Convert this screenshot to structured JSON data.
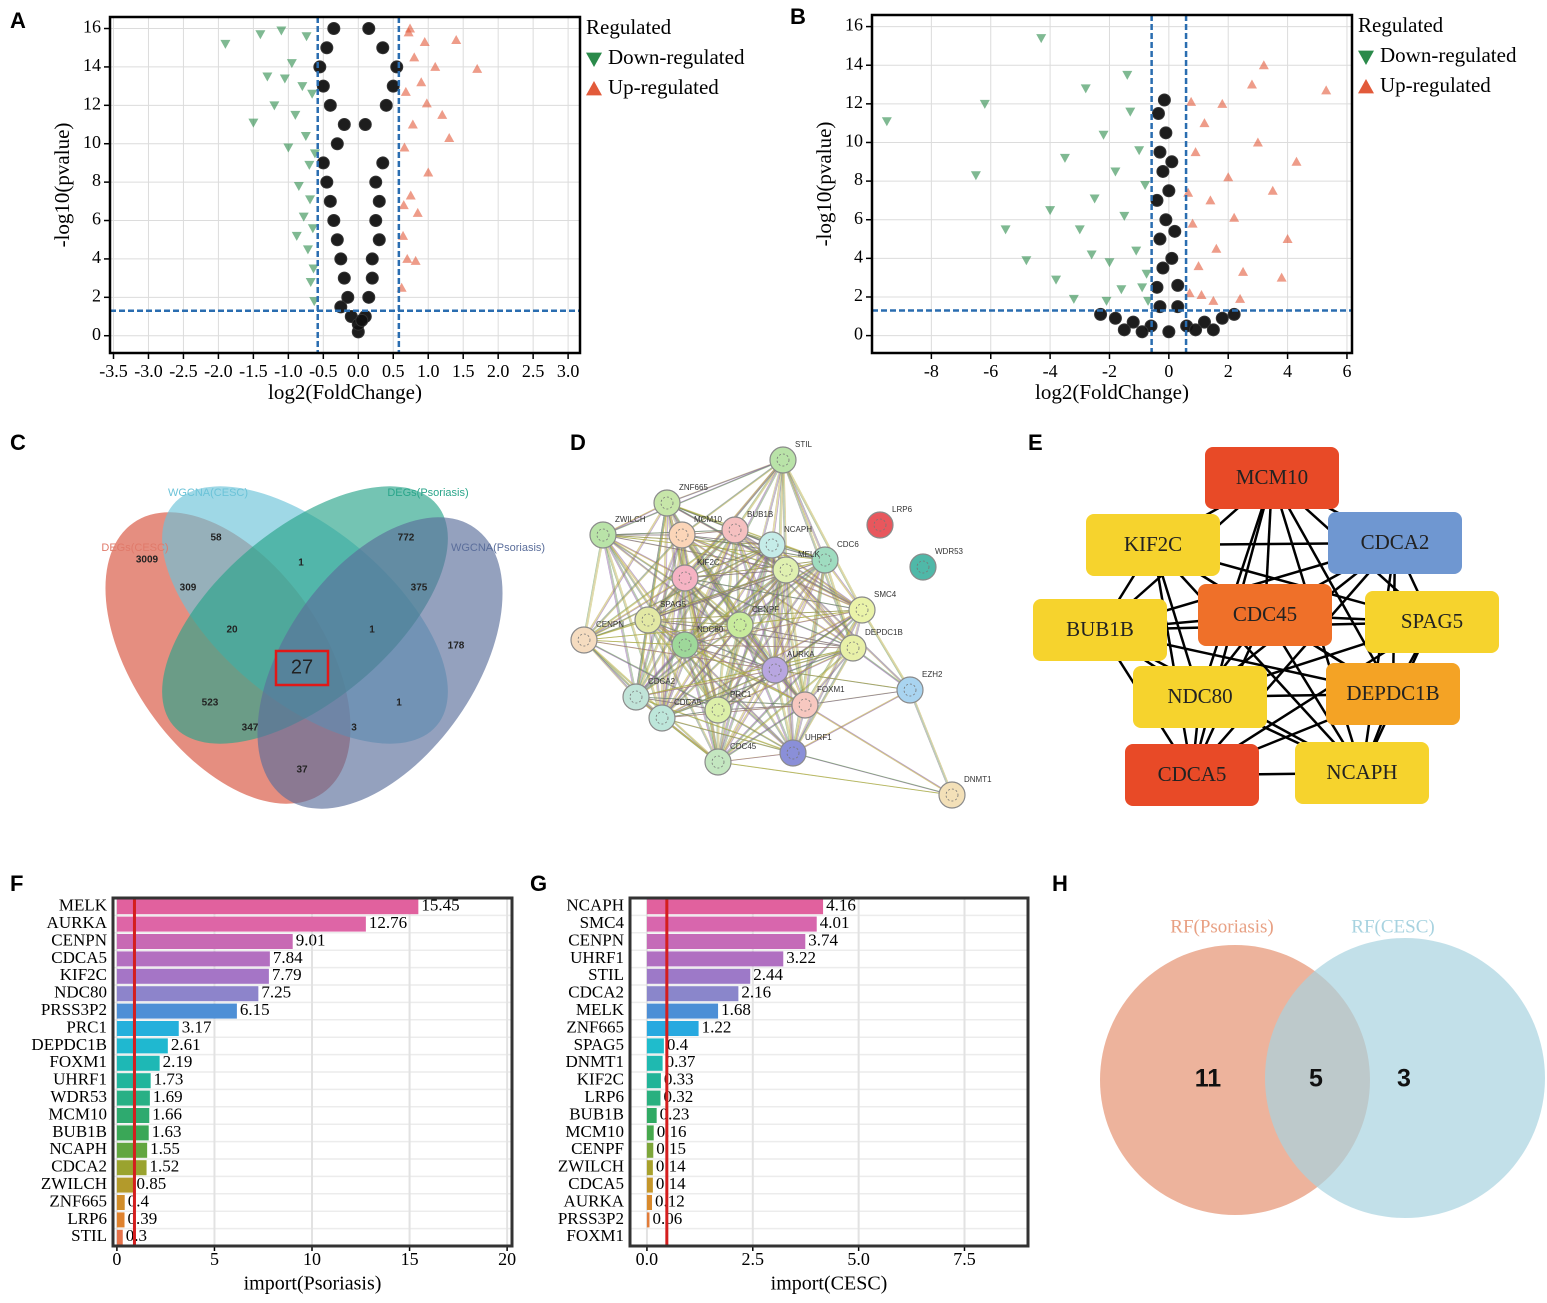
{
  "chart_data": [
    {
      "type": "scatter",
      "label": "A",
      "xlabel": "log2(FoldChange)",
      "ylabel": "-log10(pvalue)",
      "xlim": [
        -3.55,
        3.17
      ],
      "ylim": [
        -0.9,
        16.6
      ],
      "xticks": [
        -3.5,
        {
          "value": -3,
          "label": "-3.0"
        },
        -2.5,
        {
          "value": -2,
          "label": "-2.0"
        },
        -1.5,
        {
          "value": -1,
          "label": "-1.0"
        },
        -0.5,
        {
          "value": 0,
          "label": "0.0"
        },
        0.5,
        {
          "value": 1,
          "label": "1.0"
        },
        1.5,
        {
          "value": 2,
          "label": "2.0"
        },
        2.5,
        {
          "value": 3,
          "label": "3.0"
        }
      ],
      "yticks": [
        0,
        2,
        4,
        6,
        8,
        10,
        12,
        14,
        16
      ],
      "grid": true,
      "vlines": [
        -0.58,
        0.58
      ],
      "hline": 1.3,
      "legend_title": "Regulated",
      "series": [
        {
          "name": "Down-regulated",
          "color": "#2a8a4a",
          "marker": "triangle-down",
          "x": [
            -1.9,
            -1.5,
            -1.3,
            -1.2,
            -1.1,
            -1.0,
            -0.95,
            -0.9,
            -0.85,
            -0.8,
            -0.78,
            -0.75,
            -0.72,
            -0.7,
            -0.68,
            -0.66,
            -0.65,
            -0.64,
            -0.63,
            -0.62,
            -1.4,
            -1.05,
            -0.88,
            -0.74,
            -0.69
          ],
          "values": [
            15.2,
            11.1,
            13.5,
            12.0,
            15.9,
            9.8,
            14.2,
            11.5,
            7.8,
            13.0,
            6.2,
            10.4,
            4.5,
            8.9,
            2.8,
            12.6,
            5.6,
            3.5,
            1.8,
            9.5,
            15.7,
            13.4,
            5.2,
            15.6,
            7.1
          ]
        },
        {
          "name": "Up-regulated",
          "color": "#e25a3a",
          "marker": "triangle-up",
          "x": [
            0.62,
            0.64,
            0.66,
            0.68,
            0.7,
            0.72,
            0.75,
            0.78,
            0.8,
            0.85,
            0.9,
            0.95,
            1.0,
            1.1,
            1.2,
            1.3,
            1.4,
            1.7,
            0.65,
            0.82,
            0.74,
            0.98
          ],
          "values": [
            2.5,
            5.2,
            9.8,
            12.7,
            4.0,
            15.8,
            7.3,
            11.0,
            14.5,
            6.4,
            13.2,
            15.3,
            8.5,
            14.0,
            11.5,
            10.3,
            15.4,
            13.9,
            6.8,
            3.9,
            16.0,
            12.1
          ]
        },
        {
          "color": "#111111",
          "marker": "circle",
          "x": [
            0,
            -0.1,
            0.1,
            -0.15,
            0.15,
            -0.2,
            0.2,
            -0.25,
            0.2,
            -0.3,
            0.3,
            -0.35,
            0.25,
            -0.4,
            0.3,
            -0.45,
            0.25,
            -0.5,
            0.35,
            -0.3,
            0.0,
            -0.2,
            0.1,
            -0.4,
            0.4,
            -0.5,
            0.5,
            -0.55,
            0.55,
            -0.45,
            0.35,
            -0.35,
            0.15,
            -0.25,
            0.05
          ],
          "values": [
            0.2,
            1,
            1,
            2,
            2,
            3,
            3,
            4,
            4,
            5,
            5,
            6,
            6,
            7,
            7,
            8,
            8,
            9,
            9,
            10,
            0.6,
            11,
            11,
            12,
            12,
            13,
            13,
            14,
            14,
            15,
            15,
            16,
            16,
            1.5,
            0.8
          ]
        }
      ]
    },
    {
      "type": "scatter",
      "label": "B",
      "xlabel": "log2(FoldChange)",
      "ylabel": "-log10(pvalue)",
      "xlim": [
        -10,
        6.17
      ],
      "ylim": [
        -0.9,
        16.6
      ],
      "xticks": [
        -8,
        -6,
        -4,
        -2,
        0,
        2,
        4,
        6
      ],
      "yticks": [
        0,
        2,
        4,
        6,
        8,
        10,
        12,
        14,
        16
      ],
      "grid": true,
      "vlines": [
        -0.58,
        0.58
      ],
      "hline": 1.3,
      "legend_title": "Regulated",
      "series": [
        {
          "name": "Down-regulated",
          "color": "#2a8a4a",
          "marker": "triangle-down",
          "x": [
            -9.5,
            -6.5,
            -6.2,
            -4.3,
            -4.0,
            -3.5,
            -3.0,
            -2.8,
            -2.5,
            -2.2,
            -2.0,
            -1.8,
            -1.5,
            -1.3,
            -1.1,
            -0.9,
            -0.8,
            -0.7,
            -5.5,
            -4.8,
            -3.8,
            -2.6,
            -1.6,
            -1.0,
            -0.75,
            -2.1,
            -1.4,
            -3.2
          ],
          "values": [
            11.1,
            8.3,
            12.0,
            15.4,
            6.5,
            9.2,
            5.5,
            12.8,
            7.1,
            10.4,
            3.8,
            8.5,
            6.2,
            11.6,
            4.4,
            2.5,
            7.8,
            1.8,
            5.5,
            3.9,
            2.9,
            4.2,
            2.4,
            9.6,
            3.2,
            1.8,
            13.5,
            1.9
          ]
        },
        {
          "name": "Up-regulated",
          "color": "#e25a3a",
          "marker": "triangle-up",
          "x": [
            0.7,
            0.8,
            0.9,
            1.0,
            1.2,
            1.4,
            1.6,
            1.8,
            2.0,
            2.2,
            2.5,
            2.8,
            3.0,
            3.2,
            3.5,
            4.0,
            4.3,
            5.3,
            0.75,
            1.1,
            1.5,
            2.4,
            3.8,
            0.65
          ],
          "values": [
            2.2,
            5.8,
            9.5,
            3.6,
            11.0,
            7.0,
            4.5,
            12.0,
            8.2,
            6.1,
            3.3,
            13.0,
            10.0,
            14.0,
            7.5,
            5.0,
            9.0,
            12.7,
            12.1,
            2.1,
            1.8,
            1.9,
            3.0,
            7.4
          ]
        },
        {
          "color": "#111111",
          "marker": "circle",
          "x": [
            -2.3,
            -1.8,
            -1.2,
            -0.6,
            0,
            0.6,
            1.2,
            1.8,
            2.2,
            -1.5,
            -0.9,
            -0.3,
            0.3,
            0.9,
            1.5,
            -0.4,
            -0.2,
            0.1,
            0.3,
            -0.3,
            -0.1,
            0.2,
            -0.4,
            0.0,
            -0.2,
            -0.3,
            0.1,
            -0.1,
            -0.35,
            -0.15
          ],
          "values": [
            1.1,
            0.9,
            0.7,
            0.5,
            0.2,
            0.5,
            0.7,
            0.9,
            1.1,
            0.3,
            0.2,
            1.5,
            1.5,
            0.3,
            0.3,
            2.5,
            3.5,
            4,
            2.6,
            5,
            6,
            5.4,
            7,
            7.5,
            8.5,
            9.5,
            9.0,
            10.5,
            11.5,
            12.2
          ]
        }
      ]
    },
    {
      "type": "venn",
      "label": "C",
      "sets": [
        {
          "name": "DEGs(CESC)",
          "color": "#e07a6a"
        },
        {
          "name": "WGCNA(CESC)",
          "color": "#6cc3d8"
        },
        {
          "name": "DEGs(Psoriasis)",
          "color": "#2aa58a"
        },
        {
          "name": "WGCNA(Psoriasis)",
          "color": "#5b6e9b"
        }
      ],
      "regions": [
        3009,
        58,
        772,
        178,
        309,
        1,
        375,
        20,
        1,
        27,
        523,
        347,
        3,
        1,
        37
      ]
    },
    {
      "type": "network",
      "label": "D",
      "node_shape": "circle",
      "nodes": [
        {
          "name": "STIL",
          "color": "#b9e3a8"
        },
        {
          "name": "ZNF665",
          "color": "#c7e6a9"
        },
        {
          "name": "LRP6",
          "color": "#e8575d"
        },
        {
          "name": "ZWILCH",
          "color": "#b9e3a8"
        },
        {
          "name": "MCM10",
          "color": "#fbd5b8"
        },
        {
          "name": "BUB1B",
          "color": "#f5c0c0"
        },
        {
          "name": "NCAPH",
          "color": "#c5ece8"
        },
        {
          "name": "CDC6",
          "color": "#9fdcc0"
        },
        {
          "name": "WDR53",
          "color": "#4fb8a8"
        },
        {
          "name": "KIF2C",
          "color": "#f5b3c3"
        },
        {
          "name": "MELK",
          "color": "#dff0b0"
        },
        {
          "name": "SMC4",
          "color": "#eaf3a9"
        },
        {
          "name": "SPAG5",
          "color": "#e2e8a4"
        },
        {
          "name": "CENPF",
          "color": "#c8eb9c"
        },
        {
          "name": "CENPN",
          "color": "#f5dcc0"
        },
        {
          "name": "NDC80",
          "color": "#9ed89a"
        },
        {
          "name": "DEPDC1B",
          "color": "#e8f0a8"
        },
        {
          "name": "AURKA",
          "color": "#b8a6e0"
        },
        {
          "name": "CDCA2",
          "color": "#c0e4d8"
        },
        {
          "name": "PRC1",
          "color": "#dcefa8"
        },
        {
          "name": "FOXM1",
          "color": "#f7c8c0"
        },
        {
          "name": "EZH2",
          "color": "#a9d4f0"
        },
        {
          "name": "CDCA5",
          "color": "#bde6da"
        },
        {
          "name": "UHRF1",
          "color": "#8a8fd8"
        },
        {
          "name": "CDC45",
          "color": "#c3e6c0"
        },
        {
          "name": "DNMT1",
          "color": "#f3e0b8"
        }
      ]
    },
    {
      "type": "network",
      "label": "E",
      "node_shape": "box",
      "nodes": [
        {
          "name": "MCM10",
          "color": "#e84a27"
        },
        {
          "name": "KIF2C",
          "color": "#f6d32d"
        },
        {
          "name": "CDCA2",
          "color": "#6f97d1"
        },
        {
          "name": "BUB1B",
          "color": "#f6d32d"
        },
        {
          "name": "CDC45",
          "color": "#ef7029"
        },
        {
          "name": "SPAG5",
          "color": "#f6d32d"
        },
        {
          "name": "NDC80",
          "color": "#f6d32d"
        },
        {
          "name": "DEPDC1B",
          "color": "#f4a325"
        },
        {
          "name": "CDCA5",
          "color": "#e84a27"
        },
        {
          "name": "NCAPH",
          "color": "#f6d32d"
        }
      ]
    },
    {
      "type": "barh",
      "label": "F",
      "xlabel": "import(Psoriasis)",
      "categories": [
        "MELK",
        "AURKA",
        "CENPN",
        "CDCA5",
        "KIF2C",
        "NDC80",
        "PRSS3P2",
        "PRC1",
        "DEPDC1B",
        "FOXM1",
        "UHRF1",
        "WDR53",
        "MCM10",
        "BUB1B",
        "NCAPH",
        "CDCA2",
        "ZWILCH",
        "ZNF665",
        "LRP6",
        "STIL"
      ],
      "values": [
        15.45,
        12.76,
        9.01,
        7.84,
        7.79,
        7.25,
        6.15,
        3.17,
        2.61,
        2.19,
        1.73,
        1.69,
        1.66,
        1.63,
        1.55,
        1.52,
        0.85,
        0.4,
        0.39,
        0.3
      ],
      "colors": [
        "#e1619e",
        "#de65a6",
        "#c869b4",
        "#b36fc0",
        "#a575c6",
        "#8d84cb",
        "#4d8fd6",
        "#25b0dc",
        "#1fb8d0",
        "#1eb8b5",
        "#22b59c",
        "#28b085",
        "#2eaa6f",
        "#3aa757",
        "#62a640",
        "#9aa32f",
        "#b39a2b",
        "#d18d2a",
        "#df822e",
        "#e6724a"
      ],
      "xlim": [
        -0.2,
        20.25
      ],
      "xticks": [
        0,
        5,
        10,
        15,
        20
      ],
      "vline": 0.9,
      "grid": true
    },
    {
      "type": "barh",
      "label": "G",
      "xlabel": "import(CESC)",
      "categories": [
        "NCAPH",
        "SMC4",
        "CENPN",
        "UHRF1",
        "STIL",
        "CDCA2",
        "MELK",
        "ZNF665",
        "SPAG5",
        "DNMT1",
        "KIF2C",
        "LRP6",
        "BUB1B",
        "MCM10",
        "CENPF",
        "ZWILCH",
        "CDCA5",
        "AURKA",
        "PRSS3P2",
        "FOXM1"
      ],
      "values": [
        4.16,
        4.01,
        3.74,
        3.22,
        2.44,
        2.16,
        1.68,
        1.22,
        0.4,
        0.37,
        0.33,
        0.32,
        0.23,
        0.16,
        0.15,
        0.14,
        0.14,
        0.12,
        0.06,
        null
      ],
      "colors": [
        "#e1619e",
        "#d866ad",
        "#c56bb8",
        "#b06fc1",
        "#9d79c8",
        "#8a86cb",
        "#4c8fd6",
        "#27a9e0",
        "#1fbccc",
        "#1fb9b0",
        "#22b498",
        "#29b07f",
        "#30aa64",
        "#46a84d",
        "#7da63a",
        "#a8a12c",
        "#c4962a",
        "#d98a2c",
        "#e27c38",
        "#e6724a"
      ],
      "xlim": [
        -0.4,
        9.0
      ],
      "xticks": [
        {
          "value": 0,
          "label": "0.0"
        },
        2.5,
        {
          "value": 5,
          "label": "5.0"
        },
        7.5
      ],
      "vline": 0.47,
      "grid": true
    },
    {
      "type": "venn",
      "label": "H",
      "sets": [
        {
          "name": "RF(Psoriasis)",
          "color": "#e8a083"
        },
        {
          "name": "RF(CESC)",
          "color": "#a8d3e0"
        }
      ],
      "regions": [
        11,
        5,
        3
      ]
    }
  ]
}
